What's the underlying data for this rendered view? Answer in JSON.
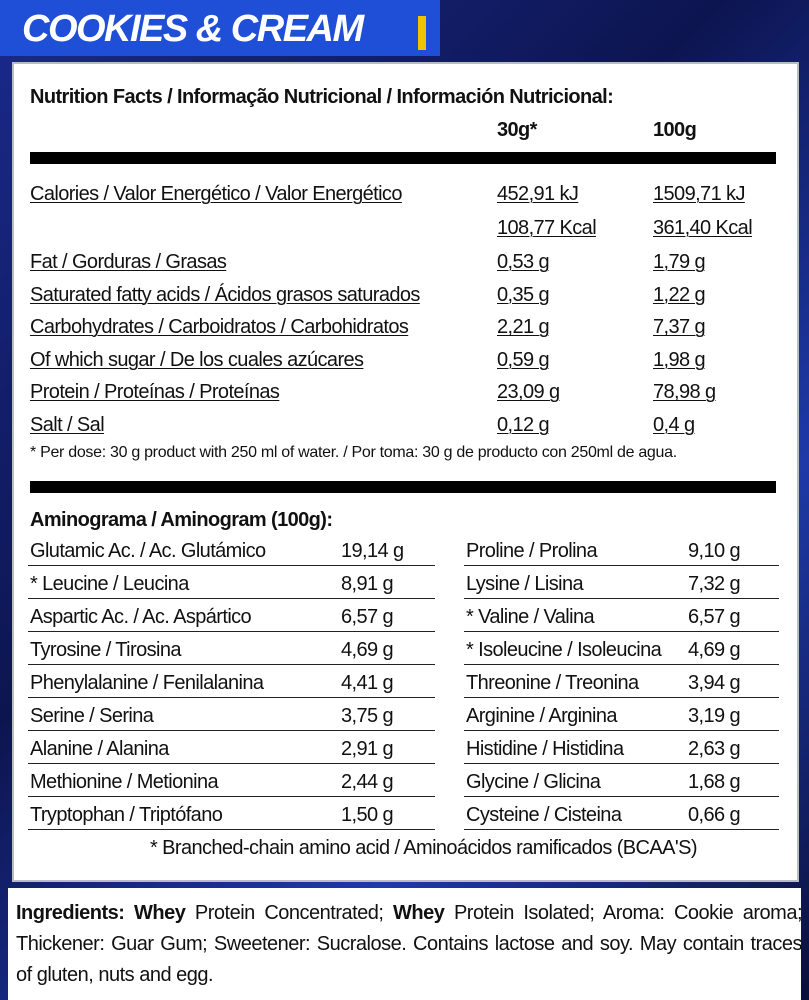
{
  "header": {
    "title": "COOKIES & CREAM"
  },
  "nutrition": {
    "title": "Nutrition Facts / Informação Nutricional / Información Nutricional:",
    "col_dose": "30g*",
    "col_100g": "100g",
    "energy": {
      "label": "Calories / Valor Energético / Valor Energético",
      "dose_kj": "452,91 kJ",
      "per100_kj": "1509,71 kJ",
      "dose_kcal": "108,77 Kcal",
      "per100_kcal": "361,40 Kcal"
    },
    "rows": [
      [
        "Fat / Gorduras / Grasas",
        "0,53 g",
        "1,79 g"
      ],
      [
        "Saturated fatty acids / Ácidos grasos saturados",
        "0,35 g",
        "1,22 g"
      ],
      [
        "Carbohydrates / Carboidratos / Carbohidratos",
        "2,21 g",
        "7,37 g"
      ],
      [
        "Of which sugar / De los cuales azúcares",
        "0,59 g",
        "1,98 g"
      ],
      [
        "Protein / Proteínas / Proteínas",
        "23,09 g",
        "78,98 g"
      ],
      [
        "Salt / Sal",
        "0,12 g",
        "0,4 g"
      ]
    ],
    "footnote": "* Per dose: 30 g product with 250 ml of water. / Por toma: 30 g de producto con 250ml de agua."
  },
  "aminogram": {
    "title": "Aminograma / Aminogram (100g):",
    "left": [
      [
        "Glutamic Ac. / Ac. Glutámico",
        "19,14 g"
      ],
      [
        "* Leucine / Leucina",
        "8,91 g"
      ],
      [
        "Aspartic Ac. / Ac. Aspártico",
        "6,57 g"
      ],
      [
        "Tyrosine / Tirosina",
        "4,69 g"
      ],
      [
        "Phenylalanine / Fenilalanina",
        "4,41 g"
      ],
      [
        "Serine / Serina",
        "3,75 g"
      ],
      [
        "Alanine / Alanina",
        "2,91 g"
      ],
      [
        "Methionine / Metionina",
        "2,44 g"
      ],
      [
        "Tryptophan / Triptófano",
        "1,50 g"
      ]
    ],
    "right": [
      [
        "Proline / Prolina",
        "9,10 g"
      ],
      [
        "Lysine / Lisina",
        "7,32 g"
      ],
      [
        "* Valine / Valina",
        "6,57 g"
      ],
      [
        "* Isoleucine / Isoleucina",
        "4,69 g"
      ],
      [
        "Threonine / Treonina",
        "3,94 g"
      ],
      [
        "Arginine / Arginina",
        "3,19 g"
      ],
      [
        "Histidine / Histidina",
        "2,63 g"
      ],
      [
        "Glycine / Glicina",
        "1,68 g"
      ],
      [
        "Cysteine / Cisteina",
        "0,66 g"
      ]
    ],
    "footnote": "* Branched-chain amino acid / Aminoácidos ramificados (BCAA'S)"
  },
  "ingredients": [
    {
      "text": "Ingredients: ",
      "bold": true
    },
    {
      "text": "Whey ",
      "bold": true
    },
    {
      "text": "Protein Concentrated; ",
      "bold": false
    },
    {
      "text": "Whey ",
      "bold": true
    },
    {
      "text": "Protein Isolated; Aroma: Cookie aroma; Thickener: Guar Gum; Sweetener: Sucralose. Contains lactose and soy. May contain traces of gluten, nuts and egg.",
      "bold": false
    }
  ]
}
